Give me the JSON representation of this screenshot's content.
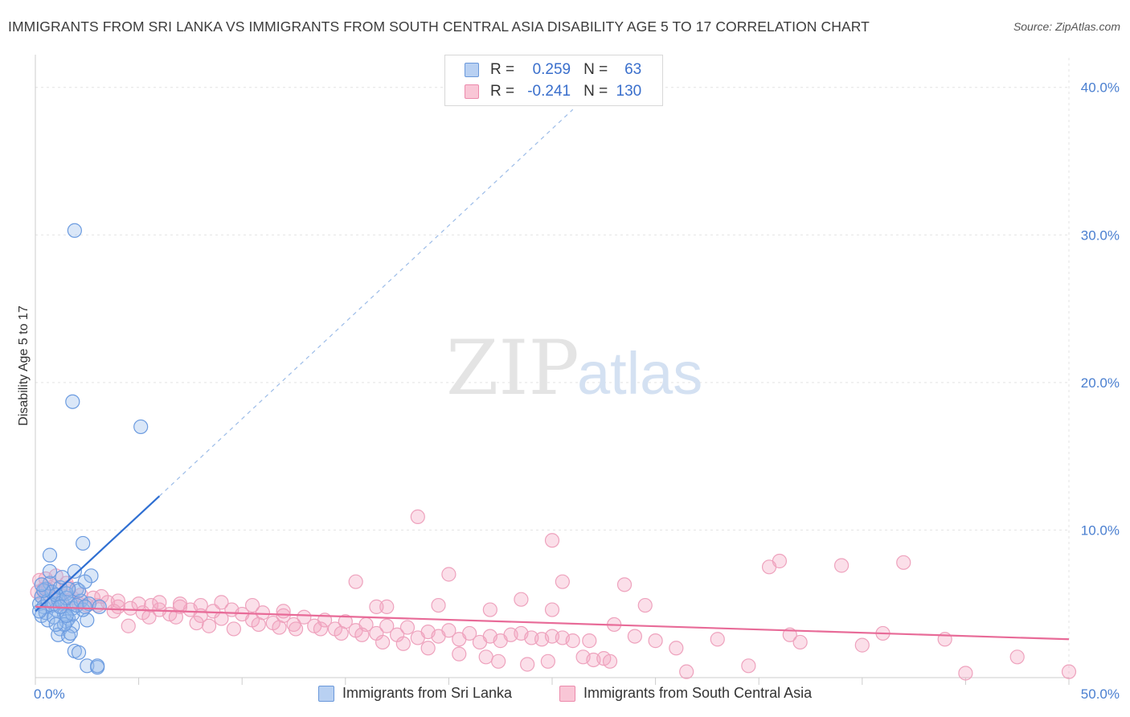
{
  "header": {
    "title": "IMMIGRANTS FROM SRI LANKA VS IMMIGRANTS FROM SOUTH CENTRAL ASIA DISABILITY AGE 5 TO 17 CORRELATION CHART",
    "source": "Source: ZipAtlas.com"
  },
  "watermark": {
    "zip": "ZIP",
    "atlas": "atlas"
  },
  "legend": {
    "r_label": "R =",
    "n_label": "N =",
    "series1": {
      "r": "0.259",
      "n": "63"
    },
    "series2": {
      "r": "-0.241",
      "n": "130"
    }
  },
  "chart_data": {
    "type": "scatter",
    "title": "IMMIGRANTS FROM SRI LANKA VS IMMIGRANTS FROM SOUTH CENTRAL ASIA DISABILITY AGE 5 TO 17 CORRELATION CHART",
    "ylabel": "Disability Age 5 to 17",
    "xlabel": "",
    "xlim": [
      0,
      50
    ],
    "ylim": [
      0,
      42
    ],
    "x_tick_labels": [
      "0.0%",
      "50.0%"
    ],
    "y_tick_labels": [
      "10.0%",
      "20.0%",
      "30.0%",
      "40.0%"
    ],
    "y_ticks": [
      10,
      20,
      30,
      40
    ],
    "grid": true,
    "colors": {
      "series1": "#4a86d8",
      "series2": "#e87aa0",
      "axis_text": "#4a7fd0"
    },
    "series": [
      {
        "name": "Immigrants from Sri Lanka",
        "r": 0.259,
        "n": 63,
        "trend": {
          "x0": 0.0,
          "y0": 4.5,
          "x1": 6.0,
          "y1": 12.3,
          "dash_to_x": 26.0,
          "dash_to_y": 38.5
        },
        "points": [
          [
            0.2,
            5.0
          ],
          [
            0.3,
            5.5
          ],
          [
            0.4,
            4.8
          ],
          [
            0.5,
            6.0
          ],
          [
            0.3,
            4.2
          ],
          [
            0.6,
            5.2
          ],
          [
            0.7,
            6.4
          ],
          [
            0.8,
            5.8
          ],
          [
            0.9,
            5.0
          ],
          [
            1.0,
            4.6
          ],
          [
            1.1,
            5.3
          ],
          [
            1.2,
            6.1
          ],
          [
            0.4,
            5.9
          ],
          [
            0.5,
            4.4
          ],
          [
            0.6,
            3.9
          ],
          [
            0.8,
            4.9
          ],
          [
            1.0,
            5.6
          ],
          [
            1.3,
            5.1
          ],
          [
            1.4,
            4.3
          ],
          [
            1.5,
            5.7
          ],
          [
            1.6,
            4.0
          ],
          [
            1.7,
            5.0
          ],
          [
            1.8,
            4.7
          ],
          [
            2.0,
            6.0
          ],
          [
            2.2,
            5.2
          ],
          [
            0.3,
            6.3
          ],
          [
            0.7,
            7.2
          ],
          [
            1.9,
            7.2
          ],
          [
            0.7,
            8.3
          ],
          [
            1.5,
            3.8
          ],
          [
            1.2,
            3.3
          ],
          [
            2.5,
            3.9
          ],
          [
            1.8,
            3.5
          ],
          [
            1.1,
            2.9
          ],
          [
            1.6,
            2.8
          ],
          [
            1.7,
            3.0
          ],
          [
            1.4,
            3.6
          ],
          [
            1.9,
            1.8
          ],
          [
            2.1,
            1.7
          ],
          [
            1.8,
            4.3
          ],
          [
            2.3,
            4.6
          ],
          [
            2.6,
            5.0
          ],
          [
            1.5,
            5.4
          ],
          [
            1.3,
            6.8
          ],
          [
            2.1,
            5.9
          ],
          [
            0.9,
            4.1
          ],
          [
            1.0,
            3.6
          ],
          [
            2.0,
            4.9
          ],
          [
            2.4,
            4.8
          ],
          [
            2.7,
            6.9
          ],
          [
            3.1,
            4.8
          ],
          [
            1.5,
            4.2
          ],
          [
            0.2,
            4.5
          ],
          [
            1.2,
            4.8
          ],
          [
            2.4,
            6.5
          ],
          [
            1.6,
            6.0
          ],
          [
            2.5,
            0.8
          ],
          [
            3.0,
            0.7
          ],
          [
            3.0,
            0.8
          ],
          [
            1.8,
            18.7
          ],
          [
            2.3,
            9.1
          ],
          [
            5.1,
            17.0
          ],
          [
            1.9,
            30.3
          ]
        ]
      },
      {
        "name": "Immigrants from South Central Asia",
        "r": -0.241,
        "n": 130,
        "trend": {
          "x0": 0.0,
          "y0": 4.8,
          "x1": 50.0,
          "y1": 2.6
        },
        "points": [
          [
            0.2,
            6.6
          ],
          [
            0.4,
            6.0
          ],
          [
            0.7,
            5.5
          ],
          [
            0.9,
            6.2
          ],
          [
            1.1,
            5.3
          ],
          [
            1.3,
            5.0
          ],
          [
            1.6,
            6.1
          ],
          [
            1.8,
            5.4
          ],
          [
            2.1,
            5.0
          ],
          [
            2.5,
            4.9
          ],
          [
            2.8,
            5.4
          ],
          [
            3.0,
            4.9
          ],
          [
            3.5,
            5.1
          ],
          [
            4.0,
            4.8
          ],
          [
            4.6,
            4.7
          ],
          [
            5.2,
            4.4
          ],
          [
            5.6,
            4.9
          ],
          [
            6.0,
            4.6
          ],
          [
            6.5,
            4.3
          ],
          [
            7.0,
            4.8
          ],
          [
            7.5,
            4.6
          ],
          [
            8.0,
            4.2
          ],
          [
            8.6,
            4.5
          ],
          [
            9.0,
            4.0
          ],
          [
            9.5,
            4.6
          ],
          [
            10.0,
            4.3
          ],
          [
            10.5,
            3.9
          ],
          [
            11.0,
            4.4
          ],
          [
            11.5,
            3.7
          ],
          [
            12.0,
            4.2
          ],
          [
            12.5,
            3.6
          ],
          [
            13.0,
            4.1
          ],
          [
            13.5,
            3.5
          ],
          [
            14.0,
            3.9
          ],
          [
            14.5,
            3.3
          ],
          [
            15.0,
            3.8
          ],
          [
            15.5,
            3.2
          ],
          [
            16.0,
            3.6
          ],
          [
            16.5,
            3.0
          ],
          [
            17.0,
            3.5
          ],
          [
            17.5,
            2.9
          ],
          [
            18.0,
            3.4
          ],
          [
            18.5,
            2.7
          ],
          [
            19.0,
            3.1
          ],
          [
            19.5,
            2.8
          ],
          [
            20.0,
            3.2
          ],
          [
            20.5,
            2.6
          ],
          [
            21.0,
            3.0
          ],
          [
            21.5,
            2.4
          ],
          [
            22.0,
            2.8
          ],
          [
            22.5,
            2.5
          ],
          [
            23.0,
            2.9
          ],
          [
            23.5,
            3.0
          ],
          [
            24.0,
            2.7
          ],
          [
            24.5,
            2.6
          ],
          [
            25.0,
            2.8
          ],
          [
            25.5,
            2.7
          ],
          [
            26.0,
            2.5
          ],
          [
            26.5,
            1.4
          ],
          [
            27.0,
            1.2
          ],
          [
            27.5,
            1.3
          ],
          [
            28.0,
            3.6
          ],
          [
            29.0,
            2.8
          ],
          [
            30.0,
            2.5
          ],
          [
            31.5,
            0.4
          ],
          [
            33.0,
            2.6
          ],
          [
            34.5,
            0.8
          ],
          [
            35.5,
            7.5
          ],
          [
            36.0,
            7.9
          ],
          [
            39.0,
            7.6
          ],
          [
            42.0,
            7.8
          ],
          [
            37.0,
            2.4
          ],
          [
            40.0,
            2.2
          ],
          [
            41.0,
            3.0
          ],
          [
            45.0,
            0.3
          ],
          [
            47.5,
            1.4
          ],
          [
            50.0,
            0.4
          ],
          [
            25.0,
            9.3
          ],
          [
            18.5,
            10.9
          ],
          [
            20.0,
            7.0
          ],
          [
            25.5,
            6.5
          ],
          [
            29.5,
            4.9
          ],
          [
            28.5,
            6.3
          ],
          [
            22.0,
            4.6
          ],
          [
            23.5,
            5.3
          ],
          [
            25.0,
            4.6
          ],
          [
            19.5,
            4.9
          ],
          [
            17.0,
            4.8
          ],
          [
            15.5,
            6.5
          ],
          [
            16.5,
            4.8
          ],
          [
            12.0,
            4.5
          ],
          [
            10.5,
            4.9
          ],
          [
            9.0,
            5.1
          ],
          [
            8.0,
            4.9
          ],
          [
            7.0,
            5.0
          ],
          [
            6.0,
            5.1
          ],
          [
            5.0,
            5.0
          ],
          [
            4.0,
            5.2
          ],
          [
            3.2,
            5.5
          ],
          [
            2.2,
            5.6
          ],
          [
            1.5,
            6.4
          ],
          [
            1.0,
            6.9
          ],
          [
            0.6,
            6.0
          ],
          [
            0.3,
            5.5
          ],
          [
            0.1,
            5.8
          ],
          [
            0.5,
            6.7
          ],
          [
            3.8,
            4.5
          ],
          [
            4.5,
            3.5
          ],
          [
            5.5,
            4.1
          ],
          [
            6.8,
            4.1
          ],
          [
            7.8,
            3.7
          ],
          [
            8.4,
            3.5
          ],
          [
            9.6,
            3.3
          ],
          [
            10.8,
            3.6
          ],
          [
            11.8,
            3.4
          ],
          [
            12.6,
            3.3
          ],
          [
            13.8,
            3.3
          ],
          [
            14.8,
            3.0
          ],
          [
            15.8,
            2.9
          ],
          [
            16.8,
            2.4
          ],
          [
            17.8,
            2.3
          ],
          [
            19.0,
            2.0
          ],
          [
            20.5,
            1.6
          ],
          [
            21.8,
            1.4
          ],
          [
            22.4,
            1.1
          ],
          [
            23.8,
            0.9
          ],
          [
            24.8,
            1.1
          ],
          [
            26.8,
            2.5
          ],
          [
            27.8,
            1.1
          ],
          [
            31.0,
            2.0
          ],
          [
            36.5,
            2.9
          ],
          [
            44.0,
            2.6
          ]
        ]
      }
    ]
  },
  "bottom_legend": {
    "series1": "Immigrants from Sri Lanka",
    "series2": "Immigrants from South Central Asia"
  }
}
